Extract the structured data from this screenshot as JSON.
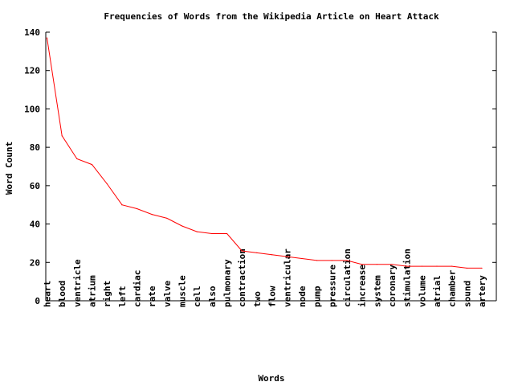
{
  "chart_data": {
    "type": "line",
    "title": "Frequencies of Words from the Wikipedia Article on Heart Attack",
    "xlabel": "Words",
    "ylabel": "Word Count",
    "ylim": [
      0,
      140
    ],
    "yticks": [
      "0",
      "20",
      "40",
      "60",
      "80",
      "100",
      "120",
      "140"
    ],
    "grid": false,
    "categories": [
      "heart",
      "blood",
      "ventricle",
      "atrium",
      "right",
      "left",
      "cardiac",
      "rate",
      "valve",
      "muscle",
      "cell",
      "also",
      "pulmonary",
      "contraction",
      "two",
      "flow",
      "ventricular",
      "node",
      "pump",
      "pressure",
      "circulation",
      "increase",
      "system",
      "coronary",
      "stimulation",
      "volume",
      "atrial",
      "chamber",
      "sound",
      "artery"
    ],
    "values": [
      137,
      86,
      74,
      71,
      61,
      50,
      48,
      45,
      43,
      39,
      36,
      35,
      35,
      26,
      25,
      24,
      23,
      22,
      21,
      21,
      21,
      19,
      19,
      19,
      18,
      18,
      18,
      18,
      17,
      17
    ],
    "series": [
      {
        "color": "#ff0000"
      }
    ]
  }
}
